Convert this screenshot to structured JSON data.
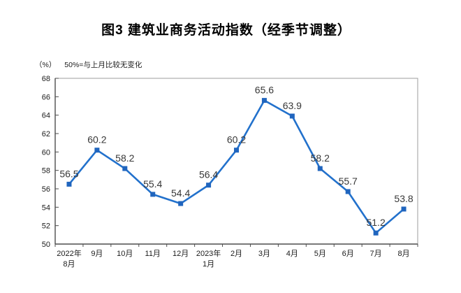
{
  "chart_data": {
    "type": "line",
    "title": "图3 建筑业商务活动指数（经季节调整）",
    "unit_label": "（%）",
    "note": "50%=与上月比较无变化",
    "categories": [
      "2022年\n8月",
      "9月",
      "10月",
      "11月",
      "12月",
      "2023年\n1月",
      "2月",
      "3月",
      "4月",
      "5月",
      "6月",
      "7月",
      "8月"
    ],
    "values": [
      56.5,
      60.2,
      58.2,
      55.4,
      54.4,
      56.4,
      60.2,
      65.6,
      63.9,
      58.2,
      55.7,
      51.2,
      53.8
    ],
    "ylim": [
      50,
      68
    ],
    "yticks": [
      50,
      52,
      54,
      56,
      58,
      60,
      62,
      64,
      66,
      68
    ],
    "grid": false,
    "legend": "none",
    "marker": "square",
    "colors": {
      "line": "#2271CC",
      "marker": "#2065BE",
      "data_label": "#383838",
      "axis_line": "#4d4d4d",
      "plot_border": "#9c9c9c",
      "tick_label": "#1a1a1a"
    }
  }
}
